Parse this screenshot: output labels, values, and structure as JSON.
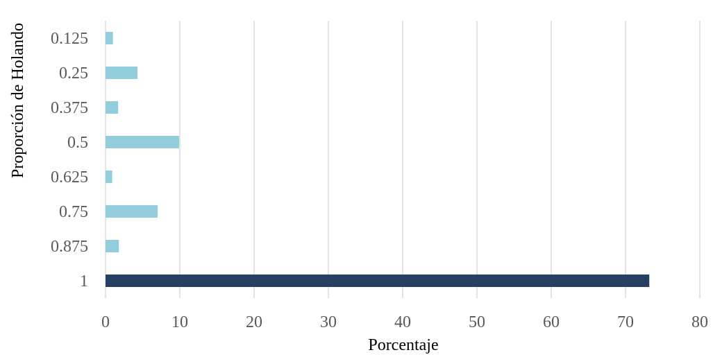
{
  "chart_data": {
    "type": "bar",
    "orientation": "horizontal",
    "categories": [
      "0.125",
      "0.25",
      "0.375",
      "0.5",
      "0.625",
      "0.75",
      "0.875",
      "1"
    ],
    "values": [
      1.0,
      4.3,
      1.7,
      9.9,
      0.9,
      7.0,
      1.8,
      73.2
    ],
    "bar_colors": [
      "#92cddc",
      "#92cddc",
      "#92cddc",
      "#92cddc",
      "#92cddc",
      "#92cddc",
      "#92cddc",
      "#243f60"
    ],
    "title": "",
    "xlabel": "Porcentaje",
    "ylabel": "Proporción de Holando",
    "xlim": [
      0,
      80
    ],
    "xticks": [
      0,
      10,
      20,
      30,
      40,
      50,
      60,
      70,
      80
    ],
    "grid": "vertical",
    "legend": "none"
  }
}
